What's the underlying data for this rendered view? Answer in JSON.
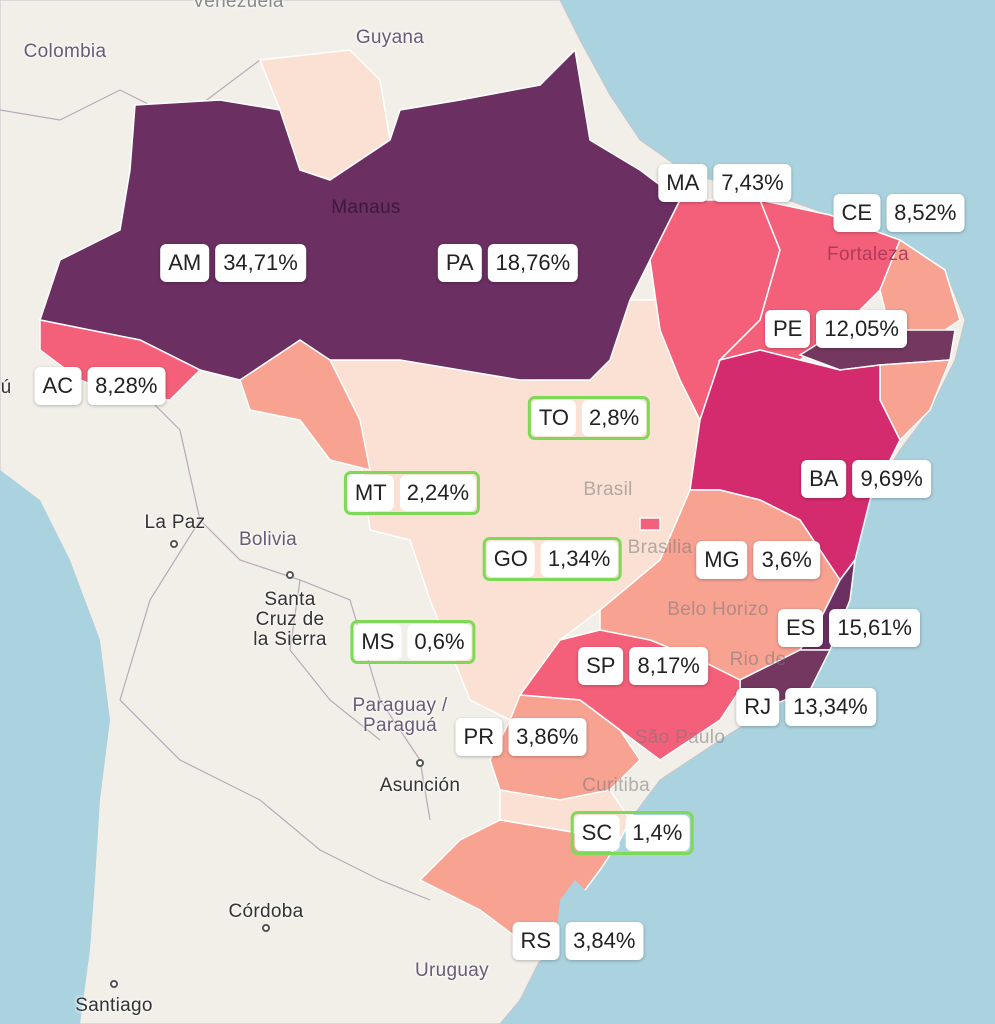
{
  "colors": {
    "water": "#aad3df",
    "land": "#f2efe9",
    "darkest": "#6b2f62",
    "dark": "#74375f",
    "magenta": "#d42b6e",
    "pink": "#f4607a",
    "salmon": "#f8a292",
    "light": "#fbe0d4",
    "highlight": "#7ed957"
  },
  "places": {
    "venezuela": "Venezuela",
    "guyana": "Guyana",
    "colombia": "Colombia",
    "manaus": "Manaus",
    "fortaleza": "Fortaleza",
    "brasil": "Brasil",
    "brasilia": "Brasilia",
    "belo_horizonte": "Belo Horizo",
    "rio": "Rio de",
    "sao_paulo": "São Paulo",
    "curitiba": "Curitiba",
    "la_paz": "La Paz",
    "bolivia": "Bolivia",
    "santa_cruz": "Santa\nCruz de\nla Sierra",
    "paraguay": "Paraguay /\nParaguá",
    "asuncion": "Asunción",
    "cordoba": "Córdoba",
    "santiago": "Santiago",
    "uruguay": "Uruguay",
    "peru_fragment": "ú"
  },
  "states": [
    {
      "code": "AM",
      "value": "34,71%",
      "highlight": false
    },
    {
      "code": "PA",
      "value": "18,76%",
      "highlight": false
    },
    {
      "code": "MA",
      "value": "7,43%",
      "highlight": false
    },
    {
      "code": "CE",
      "value": "8,52%",
      "highlight": false
    },
    {
      "code": "PE",
      "value": "12,05%",
      "highlight": false
    },
    {
      "code": "AC",
      "value": "8,28%",
      "highlight": false
    },
    {
      "code": "TO",
      "value": "2,8%",
      "highlight": true
    },
    {
      "code": "MT",
      "value": "2,24%",
      "highlight": true
    },
    {
      "code": "BA",
      "value": "9,69%",
      "highlight": false
    },
    {
      "code": "GO",
      "value": "1,34%",
      "highlight": true
    },
    {
      "code": "MG",
      "value": "3,6%",
      "highlight": false
    },
    {
      "code": "MS",
      "value": "0,6%",
      "highlight": true
    },
    {
      "code": "ES",
      "value": "15,61%",
      "highlight": false
    },
    {
      "code": "SP",
      "value": "8,17%",
      "highlight": false
    },
    {
      "code": "RJ",
      "value": "13,34%",
      "highlight": false
    },
    {
      "code": "PR",
      "value": "3,86%",
      "highlight": false
    },
    {
      "code": "SC",
      "value": "1,4%",
      "highlight": true
    },
    {
      "code": "RS",
      "value": "3,84%",
      "highlight": false
    }
  ]
}
